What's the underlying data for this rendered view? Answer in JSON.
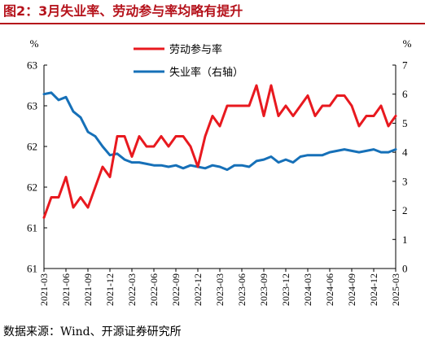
{
  "figure": {
    "title": "图2：3月失业率、劳动参与率均略有提升",
    "source": "数据来源：Wind、开源证券研究所"
  },
  "colors": {
    "title": "#b5121b",
    "participation": "#e8191f",
    "unemployment": "#1670b8",
    "axis": "#000000"
  },
  "chart_data": {
    "type": "line",
    "x": [
      "2021-03",
      "2021-04",
      "2021-05",
      "2021-06",
      "2021-07",
      "2021-08",
      "2021-09",
      "2021-10",
      "2021-11",
      "2021-12",
      "2022-01",
      "2022-02",
      "2022-03",
      "2022-04",
      "2022-05",
      "2022-06",
      "2022-07",
      "2022-08",
      "2022-09",
      "2022-10",
      "2022-11",
      "2022-12",
      "2023-01",
      "2023-02",
      "2023-03",
      "2023-04",
      "2023-05",
      "2023-06",
      "2023-07",
      "2023-08",
      "2023-09",
      "2023-10",
      "2023-11",
      "2023-12",
      "2024-01",
      "2024-02",
      "2024-03",
      "2024-04",
      "2024-05",
      "2024-06",
      "2024-07",
      "2024-08",
      "2024-09",
      "2024-10",
      "2024-11",
      "2024-12",
      "2025-01",
      "2025-02",
      "2025-03"
    ],
    "x_tick_labels": [
      "2021-03",
      "2021-06",
      "2021-09",
      "2021-12",
      "2022-03",
      "2022-06",
      "2022-09",
      "2022-12",
      "2023-03",
      "2023-06",
      "2023-09",
      "2023-12",
      "2024-03",
      "2024-06",
      "2024-09",
      "2024-12",
      "2025-03"
    ],
    "left_axis": {
      "unit": "%",
      "ticks": [
        "61",
        "61",
        "62",
        "62",
        "63",
        "63"
      ]
    },
    "right_axis": {
      "unit": "%",
      "ylim": [
        0,
        7
      ],
      "ticks": [
        "0",
        "1",
        "2",
        "3",
        "4",
        "5",
        "6",
        "7"
      ]
    },
    "legend": {
      "position": "top-right"
    },
    "series": [
      {
        "name": "劳动参与率",
        "axis": "left",
        "values": [
          61.5,
          61.7,
          61.7,
          61.9,
          61.6,
          61.7,
          61.6,
          61.8,
          62.0,
          61.9,
          62.3,
          62.3,
          62.1,
          62.3,
          62.2,
          62.2,
          62.3,
          62.2,
          62.3,
          62.3,
          62.2,
          62.0,
          62.3,
          62.5,
          62.4,
          62.6,
          62.6,
          62.6,
          62.6,
          62.8,
          62.5,
          62.8,
          62.5,
          62.6,
          62.5,
          62.6,
          62.7,
          62.5,
          62.6,
          62.6,
          62.7,
          62.7,
          62.6,
          62.4,
          62.5,
          62.5,
          62.6,
          62.4,
          62.5
        ]
      },
      {
        "name": "失业率（右轴）",
        "axis": "right",
        "values": [
          6.0,
          6.05,
          5.8,
          5.9,
          5.4,
          5.2,
          4.7,
          4.55,
          4.2,
          3.9,
          3.95,
          3.75,
          3.65,
          3.65,
          3.6,
          3.55,
          3.55,
          3.5,
          3.55,
          3.45,
          3.55,
          3.5,
          3.45,
          3.55,
          3.5,
          3.4,
          3.55,
          3.55,
          3.5,
          3.7,
          3.75,
          3.85,
          3.65,
          3.75,
          3.65,
          3.85,
          3.9,
          3.9,
          3.9,
          4.0,
          4.05,
          4.1,
          4.05,
          4.0,
          4.05,
          4.1,
          4.0,
          4.0,
          4.1
        ]
      }
    ]
  }
}
